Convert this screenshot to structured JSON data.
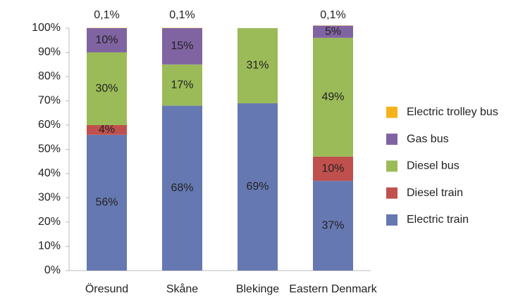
{
  "chart_data": {
    "type": "stacked_bar",
    "categories": [
      "Öresund",
      "Skåne",
      "Blekinge",
      "Eastern Denmark"
    ],
    "series": [
      {
        "name": "Electric train",
        "color": "#6678b1",
        "values": [
          56,
          68,
          69,
          37
        ],
        "value_labels": [
          "56%",
          "68%",
          "69%",
          "37%"
        ]
      },
      {
        "name": "Diesel train",
        "color": "#c0504d",
        "values": [
          4,
          0,
          0,
          10
        ],
        "value_labels": [
          "4%",
          null,
          null,
          "10%"
        ]
      },
      {
        "name": "Diesel bus",
        "color": "#9bbb59",
        "values": [
          30,
          17,
          31,
          49
        ],
        "value_labels": [
          "30%",
          "17%",
          "31%",
          "49%"
        ]
      },
      {
        "name": "Gas bus",
        "color": "#8064a2",
        "values": [
          10,
          15,
          0,
          5
        ],
        "value_labels": [
          "10%",
          "15%",
          null,
          "5%"
        ]
      },
      {
        "name": "Electric trolley bus",
        "color": "#f6b21b",
        "values": [
          0.1,
          0.1,
          0,
          0.1
        ],
        "value_labels": [
          "0,1%",
          "0,1%",
          null,
          "0,1%"
        ]
      }
    ],
    "ylim": [
      0,
      100
    ],
    "yticks": [
      {
        "value": 0,
        "label": "0%"
      },
      {
        "value": 10,
        "label": "10%"
      },
      {
        "value": 20,
        "label": "20%"
      },
      {
        "value": 30,
        "label": "30%"
      },
      {
        "value": 40,
        "label": "40%"
      },
      {
        "value": 50,
        "label": "50%"
      },
      {
        "value": 60,
        "label": "60%"
      },
      {
        "value": 70,
        "label": "70%"
      },
      {
        "value": 80,
        "label": "80%"
      },
      {
        "value": 90,
        "label": "90%"
      },
      {
        "value": 100,
        "label": "100%"
      }
    ],
    "legend": "right"
  }
}
